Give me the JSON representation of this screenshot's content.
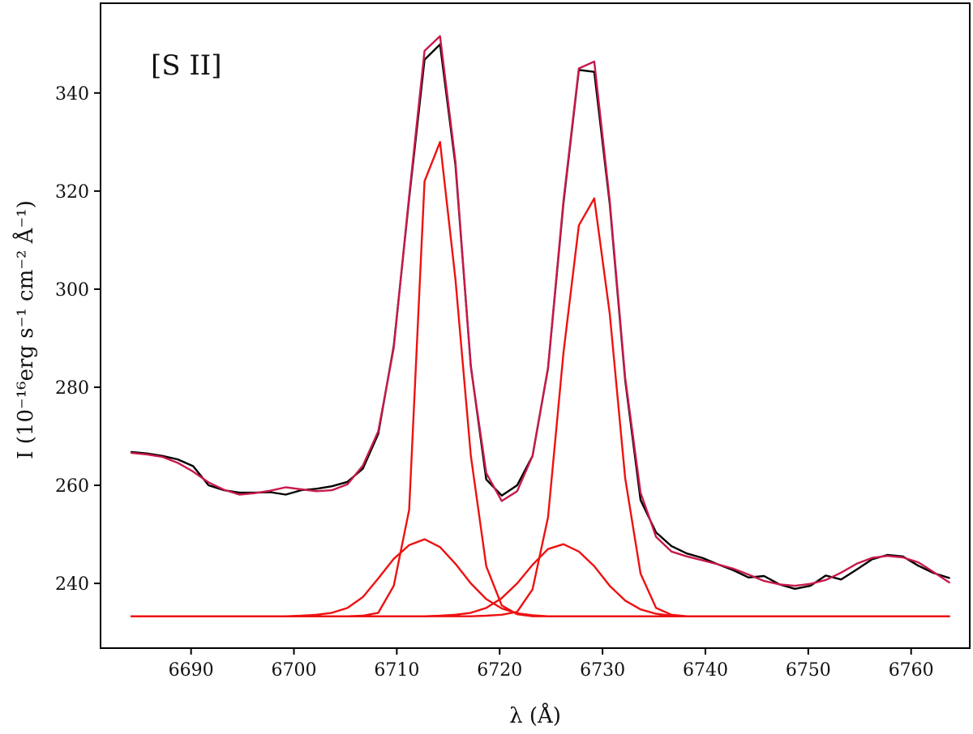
{
  "chart_data": {
    "type": "line",
    "annotation": "[S II]",
    "xlabel": "λ (Å)",
    "ylabel": "I (10⁻¹⁶erg s⁻¹ cm⁻² Å⁻¹)",
    "xlim": [
      6681.2,
      6765.7
    ],
    "ylim": [
      226.8,
      358.3
    ],
    "xticks": [
      6690,
      6700,
      6710,
      6720,
      6730,
      6740,
      6750,
      6760
    ],
    "yticks": [
      240,
      260,
      280,
      300,
      320,
      340
    ],
    "grid": false,
    "legend": "none",
    "x": [
      6684.2,
      6685.7,
      6687.2,
      6688.7,
      6690.2,
      6691.7,
      6693.2,
      6694.7,
      6696.2,
      6697.7,
      6699.2,
      6700.7,
      6702.2,
      6703.7,
      6705.2,
      6706.7,
      6708.2,
      6709.7,
      6711.2,
      6712.7,
      6714.2,
      6715.7,
      6717.2,
      6718.7,
      6720.2,
      6721.7,
      6723.2,
      6724.7,
      6726.2,
      6727.7,
      6729.2,
      6730.7,
      6732.2,
      6733.7,
      6735.2,
      6736.7,
      6738.2,
      6739.7,
      6741.2,
      6742.7,
      6744.2,
      6745.7,
      6747.2,
      6748.7,
      6750.2,
      6751.7,
      6753.2,
      6754.7,
      6756.2,
      6757.7,
      6759.2,
      6760.7,
      6762.2,
      6763.7
    ],
    "series": [
      {
        "color": "#000000",
        "values": [
          266.8,
          266.5,
          266.0,
          265.3,
          263.9,
          260.0,
          259.0,
          258.5,
          258.5,
          258.6,
          258.1,
          259.0,
          259.3,
          259.8,
          260.7,
          263.4,
          270.5,
          288.4,
          318.5,
          346.8,
          349.9,
          325.3,
          284.3,
          261.2,
          257.9,
          260.0,
          266.0,
          283.9,
          317.5,
          344.7,
          344.3,
          317.4,
          281.5,
          257.0,
          250.4,
          247.6,
          246.1,
          245.2,
          243.9,
          242.7,
          241.2,
          241.5,
          239.8,
          238.9,
          239.5,
          241.6,
          240.8,
          242.8,
          244.9,
          245.8,
          245.5,
          243.6,
          242.1,
          241.1
        ]
      },
      {
        "color": "#c8194a",
        "values": [
          266.6,
          266.3,
          265.8,
          264.6,
          262.8,
          260.6,
          259.1,
          258.1,
          258.4,
          258.9,
          259.6,
          259.2,
          258.8,
          259.0,
          260.2,
          264.0,
          271.0,
          288.0,
          319.0,
          348.6,
          351.6,
          326.0,
          284.0,
          262.5,
          256.8,
          258.8,
          266.0,
          284.0,
          318.0,
          345.0,
          346.4,
          318.0,
          282.0,
          258.5,
          249.5,
          246.5,
          245.5,
          244.7,
          243.9,
          243.0,
          241.8,
          240.5,
          239.8,
          239.5,
          239.9,
          240.7,
          242.2,
          244.0,
          245.2,
          245.6,
          245.3,
          244.3,
          242.3,
          240.2
        ]
      },
      {
        "color": "#ee1111",
        "values": [
          233.3,
          233.3,
          233.3,
          233.3,
          233.3,
          233.3,
          233.3,
          233.3,
          233.3,
          233.3,
          233.3,
          233.3,
          233.3,
          233.3,
          233.3,
          233.4,
          234.0,
          239.5,
          255.0,
          322.0,
          330.0,
          302.0,
          266.0,
          243.5,
          235.5,
          233.7,
          233.3,
          233.3,
          233.3,
          233.3,
          233.3,
          233.3,
          233.3,
          233.3,
          233.3,
          233.3,
          233.3,
          233.3,
          233.3,
          233.3,
          233.3,
          233.3,
          233.3,
          233.3,
          233.3,
          233.3,
          233.3,
          233.3,
          233.3,
          233.3,
          233.3,
          233.3,
          233.3,
          233.3
        ]
      },
      {
        "color": "#ee1111",
        "values": [
          233.3,
          233.3,
          233.3,
          233.3,
          233.3,
          233.3,
          233.3,
          233.3,
          233.3,
          233.3,
          233.3,
          233.4,
          233.6,
          234.0,
          235.0,
          237.2,
          241.0,
          245.0,
          247.8,
          249.0,
          247.4,
          244.0,
          240.0,
          236.8,
          234.9,
          233.9,
          233.5,
          233.3,
          233.3,
          233.3,
          233.3,
          233.3,
          233.3,
          233.3,
          233.3,
          233.3,
          233.3,
          233.3,
          233.3,
          233.3,
          233.3,
          233.3,
          233.3,
          233.3,
          233.3,
          233.3,
          233.3,
          233.3,
          233.3,
          233.3,
          233.3,
          233.3,
          233.3,
          233.3
        ]
      },
      {
        "color": "#ee1111",
        "values": [
          233.3,
          233.3,
          233.3,
          233.3,
          233.3,
          233.3,
          233.3,
          233.3,
          233.3,
          233.3,
          233.3,
          233.3,
          233.3,
          233.3,
          233.3,
          233.3,
          233.3,
          233.3,
          233.3,
          233.3,
          233.3,
          233.3,
          233.3,
          233.4,
          233.6,
          234.2,
          238.8,
          253.5,
          287.0,
          313.0,
          318.5,
          295.0,
          261.5,
          242.0,
          235.0,
          233.6,
          233.3,
          233.3,
          233.3,
          233.3,
          233.3,
          233.3,
          233.3,
          233.3,
          233.3,
          233.3,
          233.3,
          233.3,
          233.3,
          233.3,
          233.3,
          233.3,
          233.3,
          233.3
        ]
      },
      {
        "color": "#ee1111",
        "values": [
          233.3,
          233.3,
          233.3,
          233.3,
          233.3,
          233.3,
          233.3,
          233.3,
          233.3,
          233.3,
          233.3,
          233.3,
          233.3,
          233.3,
          233.3,
          233.3,
          233.3,
          233.3,
          233.3,
          233.3,
          233.4,
          233.6,
          234.0,
          235.0,
          237.0,
          240.0,
          243.8,
          247.0,
          248.0,
          246.5,
          243.5,
          239.5,
          236.5,
          234.7,
          233.8,
          233.4,
          233.3,
          233.3,
          233.3,
          233.3,
          233.3,
          233.3,
          233.3,
          233.3,
          233.3,
          233.3,
          233.3,
          233.3,
          233.3,
          233.3,
          233.3,
          233.3,
          233.3,
          233.3
        ]
      }
    ]
  }
}
